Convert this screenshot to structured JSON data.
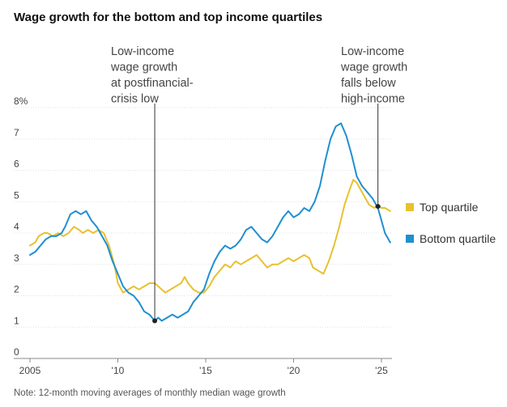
{
  "chart_data": {
    "type": "line",
    "title": "Wage growth for the bottom and top income quartiles",
    "note": "Note: 12-month moving averages of monthly median wage growth",
    "ylim": [
      0,
      8
    ],
    "xlim": [
      2005,
      2025.6
    ],
    "y_ticks": [
      {
        "value": 0,
        "label": "0"
      },
      {
        "value": 1,
        "label": "1"
      },
      {
        "value": 2,
        "label": "2"
      },
      {
        "value": 3,
        "label": "3"
      },
      {
        "value": 4,
        "label": "4"
      },
      {
        "value": 5,
        "label": "5"
      },
      {
        "value": 6,
        "label": "6"
      },
      {
        "value": 7,
        "label": "7"
      },
      {
        "value": 8,
        "label": "8%"
      }
    ],
    "x_ticks": [
      {
        "value": 2005,
        "label": "2005"
      },
      {
        "value": 2010,
        "label": "'10"
      },
      {
        "value": 2015,
        "label": "'15"
      },
      {
        "value": 2020,
        "label": "'20"
      },
      {
        "value": 2025,
        "label": "'25"
      }
    ],
    "grid": "horizontal",
    "legend_position": "right",
    "series": [
      {
        "name": "Top quartile",
        "color": "#e8c130",
        "points": [
          [
            2005.0,
            3.6
          ],
          [
            2005.3,
            3.7
          ],
          [
            2005.5,
            3.9
          ],
          [
            2005.8,
            4.0
          ],
          [
            2006.0,
            4.0
          ],
          [
            2006.3,
            3.9
          ],
          [
            2006.6,
            4.0
          ],
          [
            2006.9,
            3.9
          ],
          [
            2007.2,
            4.0
          ],
          [
            2007.5,
            4.2
          ],
          [
            2007.8,
            4.1
          ],
          [
            2008.0,
            4.0
          ],
          [
            2008.3,
            4.1
          ],
          [
            2008.6,
            4.0
          ],
          [
            2008.9,
            4.1
          ],
          [
            2009.2,
            4.0
          ],
          [
            2009.5,
            3.6
          ],
          [
            2009.8,
            3.0
          ],
          [
            2010.0,
            2.4
          ],
          [
            2010.3,
            2.1
          ],
          [
            2010.6,
            2.2
          ],
          [
            2010.9,
            2.3
          ],
          [
            2011.2,
            2.2
          ],
          [
            2011.5,
            2.3
          ],
          [
            2011.8,
            2.4
          ],
          [
            2012.1,
            2.4
          ],
          [
            2012.3,
            2.3
          ],
          [
            2012.5,
            2.2
          ],
          [
            2012.7,
            2.1
          ],
          [
            2013.0,
            2.2
          ],
          [
            2013.3,
            2.3
          ],
          [
            2013.6,
            2.4
          ],
          [
            2013.8,
            2.6
          ],
          [
            2014.0,
            2.4
          ],
          [
            2014.3,
            2.2
          ],
          [
            2014.6,
            2.1
          ],
          [
            2014.9,
            2.1
          ],
          [
            2015.2,
            2.3
          ],
          [
            2015.5,
            2.6
          ],
          [
            2015.8,
            2.8
          ],
          [
            2016.1,
            3.0
          ],
          [
            2016.4,
            2.9
          ],
          [
            2016.7,
            3.1
          ],
          [
            2017.0,
            3.0
          ],
          [
            2017.3,
            3.1
          ],
          [
            2017.6,
            3.2
          ],
          [
            2017.9,
            3.3
          ],
          [
            2018.2,
            3.1
          ],
          [
            2018.5,
            2.9
          ],
          [
            2018.8,
            3.0
          ],
          [
            2019.1,
            3.0
          ],
          [
            2019.4,
            3.1
          ],
          [
            2019.7,
            3.2
          ],
          [
            2020.0,
            3.1
          ],
          [
            2020.3,
            3.2
          ],
          [
            2020.6,
            3.3
          ],
          [
            2020.9,
            3.2
          ],
          [
            2021.1,
            2.9
          ],
          [
            2021.4,
            2.8
          ],
          [
            2021.7,
            2.7
          ],
          [
            2022.0,
            3.1
          ],
          [
            2022.3,
            3.6
          ],
          [
            2022.6,
            4.2
          ],
          [
            2022.9,
            4.9
          ],
          [
            2023.2,
            5.4
          ],
          [
            2023.4,
            5.7
          ],
          [
            2023.6,
            5.6
          ],
          [
            2023.8,
            5.4
          ],
          [
            2024.0,
            5.2
          ],
          [
            2024.3,
            4.9
          ],
          [
            2024.6,
            4.8
          ],
          [
            2024.8,
            4.9
          ],
          [
            2025.0,
            4.8
          ],
          [
            2025.2,
            4.8
          ],
          [
            2025.5,
            4.7
          ]
        ]
      },
      {
        "name": "Bottom quartile",
        "color": "#1f8fd1",
        "points": [
          [
            2005.0,
            3.3
          ],
          [
            2005.3,
            3.4
          ],
          [
            2005.6,
            3.6
          ],
          [
            2005.9,
            3.8
          ],
          [
            2006.2,
            3.9
          ],
          [
            2006.5,
            3.9
          ],
          [
            2006.8,
            4.0
          ],
          [
            2007.0,
            4.2
          ],
          [
            2007.3,
            4.6
          ],
          [
            2007.6,
            4.7
          ],
          [
            2007.9,
            4.6
          ],
          [
            2008.2,
            4.7
          ],
          [
            2008.5,
            4.4
          ],
          [
            2008.8,
            4.2
          ],
          [
            2009.1,
            3.9
          ],
          [
            2009.4,
            3.6
          ],
          [
            2009.7,
            3.1
          ],
          [
            2010.0,
            2.7
          ],
          [
            2010.3,
            2.3
          ],
          [
            2010.6,
            2.1
          ],
          [
            2010.9,
            2.0
          ],
          [
            2011.2,
            1.8
          ],
          [
            2011.5,
            1.5
          ],
          [
            2011.8,
            1.4
          ],
          [
            2012.1,
            1.2
          ],
          [
            2012.3,
            1.3
          ],
          [
            2012.5,
            1.2
          ],
          [
            2012.8,
            1.3
          ],
          [
            2013.1,
            1.4
          ],
          [
            2013.4,
            1.3
          ],
          [
            2013.7,
            1.4
          ],
          [
            2014.0,
            1.5
          ],
          [
            2014.3,
            1.8
          ],
          [
            2014.6,
            2.0
          ],
          [
            2014.9,
            2.2
          ],
          [
            2015.2,
            2.7
          ],
          [
            2015.5,
            3.1
          ],
          [
            2015.8,
            3.4
          ],
          [
            2016.1,
            3.6
          ],
          [
            2016.4,
            3.5
          ],
          [
            2016.7,
            3.6
          ],
          [
            2017.0,
            3.8
          ],
          [
            2017.3,
            4.1
          ],
          [
            2017.6,
            4.2
          ],
          [
            2017.9,
            4.0
          ],
          [
            2018.2,
            3.8
          ],
          [
            2018.5,
            3.7
          ],
          [
            2018.8,
            3.9
          ],
          [
            2019.1,
            4.2
          ],
          [
            2019.4,
            4.5
          ],
          [
            2019.7,
            4.7
          ],
          [
            2020.0,
            4.5
          ],
          [
            2020.3,
            4.6
          ],
          [
            2020.6,
            4.8
          ],
          [
            2020.9,
            4.7
          ],
          [
            2021.2,
            5.0
          ],
          [
            2021.5,
            5.5
          ],
          [
            2021.8,
            6.3
          ],
          [
            2022.1,
            7.0
          ],
          [
            2022.4,
            7.4
          ],
          [
            2022.7,
            7.5
          ],
          [
            2023.0,
            7.1
          ],
          [
            2023.3,
            6.5
          ],
          [
            2023.6,
            5.8
          ],
          [
            2023.9,
            5.5
          ],
          [
            2024.2,
            5.3
          ],
          [
            2024.5,
            5.1
          ],
          [
            2024.8,
            4.8
          ],
          [
            2025.0,
            4.4
          ],
          [
            2025.2,
            4.0
          ],
          [
            2025.5,
            3.7
          ]
        ]
      }
    ],
    "annotations": [
      {
        "lines": [
          "Low-income",
          "wage growth",
          "at postfinancial-",
          "crisis low"
        ],
        "x": 2012.1,
        "y": 1.2
      },
      {
        "lines": [
          "Low-income",
          "wage growth",
          "falls below",
          "high-income"
        ],
        "x": 2024.8,
        "y": 4.85
      }
    ]
  }
}
